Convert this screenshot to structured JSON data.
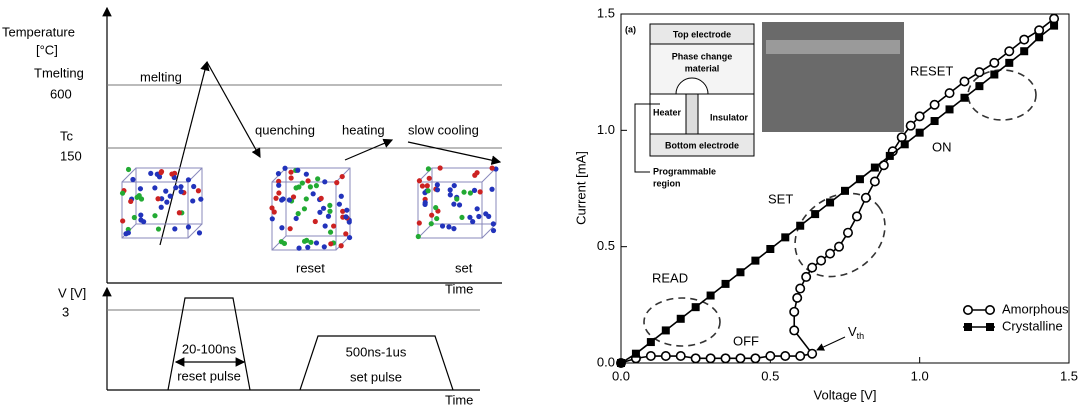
{
  "diagram": {
    "temp_axis": [
      "Temperature",
      "[°C]"
    ],
    "tmelting": "Tmelting",
    "tmelting_value": "600",
    "tc": "Tc",
    "tc_value": "150",
    "labels": [
      "melting",
      "quenching",
      "heating",
      "slow cooling",
      "reset",
      "set"
    ],
    "time_top": "Time",
    "v_axis": "V [V]",
    "v_value": "3",
    "reset_time": "20-100ns",
    "reset_pulse": "reset pulse",
    "set_time": "500ns-1us",
    "set_pulse": "set pulse",
    "time_bottom": "Time"
  },
  "chart_data": {
    "type": "line",
    "xlabel": "Voltage [V]",
    "ylabel": "Current [mA]",
    "xlim": [
      0,
      1.5
    ],
    "ylim": [
      0,
      1.5
    ],
    "xticks": [
      {
        "value": 0,
        "label": "0.0"
      },
      0.5,
      {
        "value": 1,
        "label": "1.0"
      },
      1.5
    ],
    "yticks": [
      {
        "value": 0,
        "label": "0.0"
      },
      0.5,
      {
        "value": 1,
        "label": "1.0"
      },
      1.5
    ],
    "series": [
      {
        "name": "Amorphous",
        "color": "#000",
        "marker": "circle-open",
        "x": [
          0,
          0.05,
          0.1,
          0.15,
          0.2,
          0.25,
          0.3,
          0.35,
          0.4,
          0.45,
          0.5,
          0.55,
          0.6,
          0.64,
          0.58,
          0.58,
          0.59,
          0.6,
          0.62,
          0.64,
          0.67,
          0.7,
          0.73,
          0.76,
          0.79,
          0.82,
          0.85,
          0.88,
          0.91,
          0.94,
          0.97,
          1.0,
          1.05,
          1.1,
          1.15,
          1.2,
          1.25,
          1.3,
          1.35,
          1.4,
          1.45
        ],
        "values": [
          0,
          0.02,
          0.03,
          0.03,
          0.03,
          0.02,
          0.02,
          0.02,
          0.02,
          0.02,
          0.03,
          0.03,
          0.03,
          0.04,
          0.14,
          0.22,
          0.28,
          0.32,
          0.37,
          0.41,
          0.44,
          0.47,
          0.5,
          0.56,
          0.63,
          0.71,
          0.78,
          0.85,
          0.91,
          0.97,
          1.02,
          1.06,
          1.11,
          1.16,
          1.21,
          1.25,
          1.29,
          1.34,
          1.39,
          1.43,
          1.48
        ]
      },
      {
        "name": "Crystalline",
        "color": "#000",
        "marker": "square",
        "x": [
          0,
          0.05,
          0.1,
          0.15,
          0.2,
          0.25,
          0.3,
          0.35,
          0.4,
          0.45,
          0.5,
          0.55,
          0.6,
          0.65,
          0.7,
          0.75,
          0.8,
          0.85,
          0.9,
          0.95,
          1.0,
          1.05,
          1.1,
          1.15,
          1.2,
          1.25,
          1.3,
          1.35,
          1.4,
          1.45
        ],
        "values": [
          0,
          0.04,
          0.09,
          0.14,
          0.19,
          0.24,
          0.29,
          0.34,
          0.39,
          0.44,
          0.49,
          0.54,
          0.59,
          0.64,
          0.69,
          0.74,
          0.79,
          0.84,
          0.89,
          0.94,
          0.99,
          1.04,
          1.09,
          1.14,
          1.19,
          1.24,
          1.29,
          1.34,
          1.4,
          1.45
        ]
      }
    ],
    "annotations": {
      "read": "READ",
      "set": "SET",
      "reset": "RESET",
      "on": "ON",
      "off": "OFF",
      "vth": "V",
      "vth_sub": "th"
    },
    "inset": {
      "tag": "(a)",
      "top": "Top electrode",
      "pcm": [
        "Phase change",
        "material"
      ],
      "heater": "Heater",
      "insulator": "Insulator",
      "bottom": "Bottom electrode",
      "region": [
        "Programmable",
        "region"
      ]
    }
  }
}
